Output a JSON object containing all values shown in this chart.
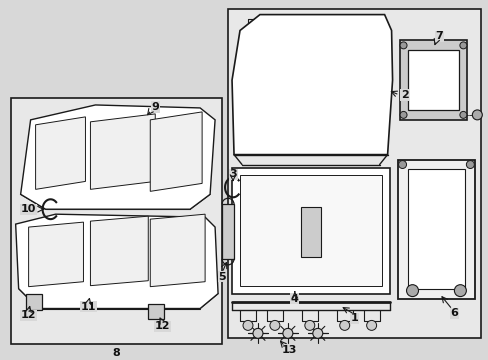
{
  "background_color": "#d8d8d8",
  "main_box_color": "#e8e8e8",
  "inset_box_color": "#e8e8e8",
  "part_fill": "#ffffff",
  "line_color": "#1a1a1a",
  "label_color": "#111111",
  "fig_width": 4.89,
  "fig_height": 3.6,
  "dpi": 100
}
